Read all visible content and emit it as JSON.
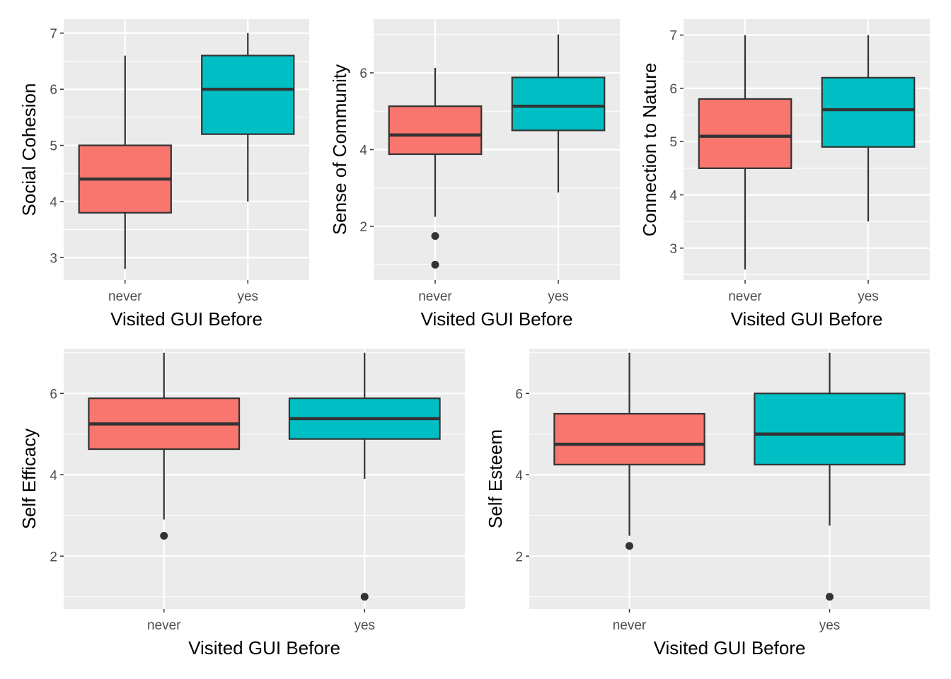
{
  "chart_data": [
    {
      "type": "boxplot",
      "xlabel": "Visited GUI Before",
      "ylabel": "Social Cohesion",
      "ylim": [
        2.6,
        7.25
      ],
      "yticks": [
        3,
        4,
        5,
        6,
        7
      ],
      "categories": [
        "never",
        "yes"
      ],
      "grid": true,
      "legend": "none",
      "boxes": [
        {
          "category": "never",
          "color": "#F8766D",
          "min": 2.8,
          "q1": 3.8,
          "median": 4.4,
          "q3": 5.0,
          "max": 6.6,
          "outliers": []
        },
        {
          "category": "yes",
          "color": "#00BFC4",
          "min": 4.0,
          "q1": 5.2,
          "median": 6.0,
          "q3": 6.6,
          "max": 7.0,
          "outliers": []
        }
      ]
    },
    {
      "type": "boxplot",
      "xlabel": "Visited GUI Before",
      "ylabel": "Sense of Community",
      "ylim": [
        0.6,
        7.4
      ],
      "yticks": [
        2,
        4,
        6
      ],
      "categories": [
        "never",
        "yes"
      ],
      "grid": true,
      "legend": "none",
      "boxes": [
        {
          "category": "never",
          "color": "#F8766D",
          "min": 2.25,
          "q1": 3.88,
          "median": 4.38,
          "q3": 5.13,
          "max": 6.13,
          "outliers": [
            1.75,
            1.0
          ]
        },
        {
          "category": "yes",
          "color": "#00BFC4",
          "min": 2.88,
          "q1": 4.5,
          "median": 5.13,
          "q3": 5.88,
          "max": 7.0,
          "outliers": []
        }
      ]
    },
    {
      "type": "boxplot",
      "xlabel": "Visited GUI Before",
      "ylabel": "Connection to Nature",
      "ylim": [
        2.4,
        7.3
      ],
      "yticks": [
        3,
        4,
        5,
        6,
        7
      ],
      "categories": [
        "never",
        "yes"
      ],
      "grid": true,
      "legend": "none",
      "boxes": [
        {
          "category": "never",
          "color": "#F8766D",
          "min": 2.6,
          "q1": 4.5,
          "median": 5.1,
          "q3": 5.8,
          "max": 7.0,
          "outliers": []
        },
        {
          "category": "yes",
          "color": "#00BFC4",
          "min": 3.5,
          "q1": 4.9,
          "median": 5.6,
          "q3": 6.2,
          "max": 7.0,
          "outliers": []
        }
      ]
    },
    {
      "type": "boxplot",
      "xlabel": "Visited GUI Before",
      "ylabel": "Self Efficacy",
      "ylim": [
        0.7,
        7.1
      ],
      "yticks": [
        2,
        4,
        6
      ],
      "categories": [
        "never",
        "yes"
      ],
      "grid": true,
      "legend": "none",
      "boxes": [
        {
          "category": "never",
          "color": "#F8766D",
          "min": 2.9,
          "q1": 4.63,
          "median": 5.25,
          "q3": 5.88,
          "max": 7.0,
          "outliers": [
            2.5
          ]
        },
        {
          "category": "yes",
          "color": "#00BFC4",
          "min": 3.9,
          "q1": 4.88,
          "median": 5.38,
          "q3": 5.88,
          "max": 7.0,
          "outliers": [
            1.0
          ]
        }
      ]
    },
    {
      "type": "boxplot",
      "xlabel": "Visited GUI Before",
      "ylabel": "Self Esteem",
      "ylim": [
        0.7,
        7.1
      ],
      "yticks": [
        2,
        4,
        6
      ],
      "categories": [
        "never",
        "yes"
      ],
      "grid": true,
      "legend": "none",
      "boxes": [
        {
          "category": "never",
          "color": "#F8766D",
          "min": 2.5,
          "q1": 4.25,
          "median": 4.75,
          "q3": 5.5,
          "max": 7.0,
          "outliers": [
            2.25
          ]
        },
        {
          "category": "yes",
          "color": "#00BFC4",
          "min": 2.75,
          "q1": 4.25,
          "median": 5.0,
          "q3": 6.0,
          "max": 7.0,
          "outliers": [
            1.0
          ]
        }
      ]
    }
  ]
}
